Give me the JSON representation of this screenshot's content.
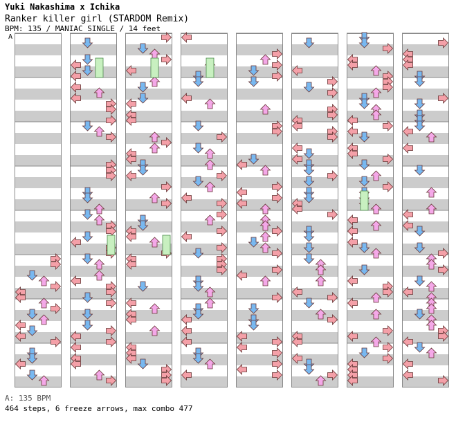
{
  "header": {
    "artist": "Yuki Nakashima x Ichika",
    "title": "Ranker killer girl (STARDOM Remix)",
    "info": "BPM: 135 / MANIAC SINGLE / 14 feet"
  },
  "marker_label": "A",
  "footer": {
    "bpm_label": "A: 135 BPM",
    "stats": "464 steps, 6 freeze arrows, max combo 477"
  },
  "colors": {
    "left": "#f4a0a8",
    "down": "#78b8f0",
    "up": "#f4a8e8",
    "right": "#f4a0a8",
    "outline": "#663333",
    "freeze": "#c8f0c0",
    "band": "#cccccc"
  },
  "chart": {
    "columns": 8,
    "measures_per_column": 8,
    "empty_leading_measures": 5,
    "seed": 135
  }
}
